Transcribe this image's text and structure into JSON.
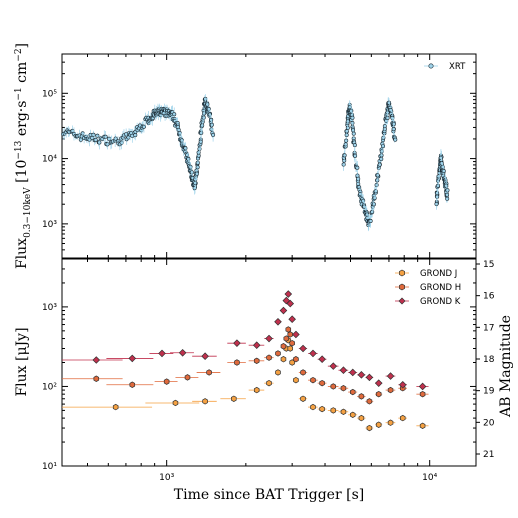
{
  "chart_data": [
    {
      "type": "scatter",
      "panel": "top",
      "xscale": "log",
      "yscale": "log",
      "xlim": [
        400,
        15000
      ],
      "ylim": [
        300,
        400000
      ],
      "ylabel": "Flux_{0.3-10keV} [10^{-13} erg·s^{-1} cm^{-2}]",
      "xlabel": "",
      "yticks": [
        {
          "v": 1000,
          "label": "10³"
        },
        {
          "v": 10000,
          "label": "10⁴"
        },
        {
          "v": 100000,
          "label": "10⁵"
        }
      ],
      "legend_placement": "top-right",
      "grid": false,
      "series": [
        {
          "name": "XRT",
          "color": "#9fd3ea",
          "segments": [
            {
              "x": [
                400,
                470,
                550,
                650,
                750,
                850,
                900,
                950,
                1000,
                1060,
                1120,
                1180,
                1240,
                1280,
                1310,
                1360,
                1400,
                1440,
                1500
              ],
              "y": [
                26000,
                22000,
                20000,
                18000,
                24000,
                40000,
                48000,
                52000,
                50000,
                45000,
                25000,
                12000,
                6000,
                3500,
                8000,
                30000,
                75000,
                55000,
                25000
              ]
            },
            {
              "x": [
                4700,
                4850,
                4950,
                5050,
                5200,
                5400,
                5700,
                5900,
                6200,
                6500,
                6800,
                7000,
                7200,
                7400
              ],
              "y": [
                8000,
                30000,
                60000,
                45000,
                12000,
                3000,
                1500,
                1000,
                3000,
                10000,
                35000,
                70000,
                40000,
                20000
              ]
            },
            {
              "x": [
                10600,
                10800,
                11000,
                11200,
                11500,
                11700
              ],
              "y": [
                2000,
                5000,
                10000,
                7000,
                4000,
                2500
              ]
            }
          ]
        }
      ]
    },
    {
      "type": "scatter",
      "panel": "bottom",
      "xscale": "log",
      "yscale": "log",
      "xlim": [
        400,
        15000
      ],
      "ylim": [
        10,
        4000
      ],
      "xlabel": "Time since BAT Trigger [s]",
      "ylabel": "Flux [μJy]",
      "y2label": "AB Magnitude",
      "xticks": [
        {
          "v": 1000,
          "label": "10³"
        },
        {
          "v": 10000,
          "label": "10⁴"
        }
      ],
      "yticks": [
        {
          "v": 10,
          "label": "10¹"
        },
        {
          "v": 100,
          "label": "10²"
        },
        {
          "v": 1000,
          "label": "10³"
        }
      ],
      "y2ticks": [
        "15",
        "16",
        "17",
        "18",
        "19",
        "20",
        "21"
      ],
      "legend_placement": "top-right",
      "grid": false,
      "series": [
        {
          "name": "GROND J",
          "color": "#f5a142",
          "x": [
            640,
            1080,
            1400,
            1800,
            2200,
            2450,
            2650,
            2780,
            2850,
            2900,
            2950,
            3000,
            3100,
            3300,
            3600,
            3900,
            4300,
            4700,
            5100,
            5500,
            5900,
            6400,
            7100,
            7900,
            9400
          ],
          "y": [
            55,
            62,
            65,
            70,
            90,
            110,
            150,
            220,
            300,
            380,
            300,
            200,
            120,
            70,
            55,
            52,
            50,
            48,
            44,
            40,
            30,
            33,
            35,
            40,
            32
          ],
          "xerr": [
            240,
            250,
            150,
            200,
            150,
            100,
            60,
            40,
            30,
            30,
            30,
            40,
            80,
            120,
            150,
            150,
            200,
            200,
            200,
            200,
            200,
            200,
            300,
            300,
            500
          ]
        },
        {
          "name": "GROND H",
          "color": "#e06a3c",
          "x": [
            540,
            740,
            1000,
            1200,
            1450,
            1850,
            2200,
            2450,
            2650,
            2780,
            2850,
            2900,
            2950,
            3000,
            3100,
            3300,
            3600,
            3900,
            4300,
            4700,
            5100,
            5500,
            5900,
            6400,
            7100,
            7900,
            9400
          ],
          "y": [
            125,
            105,
            115,
            130,
            150,
            200,
            210,
            230,
            260,
            320,
            400,
            520,
            450,
            350,
            220,
            150,
            120,
            110,
            100,
            95,
            85,
            75,
            65,
            80,
            90,
            95,
            80
          ],
          "xerr": [
            140,
            150,
            100,
            120,
            150,
            150,
            150,
            100,
            60,
            40,
            30,
            30,
            30,
            40,
            80,
            120,
            150,
            150,
            200,
            200,
            200,
            200,
            200,
            200,
            300,
            300,
            500
          ]
        },
        {
          "name": "GROND K",
          "color": "#c0304d",
          "x": [
            540,
            740,
            960,
            1150,
            1400,
            1850,
            2200,
            2450,
            2650,
            2780,
            2850,
            2900,
            2950,
            3000,
            3100,
            3300,
            3600,
            3900,
            4300,
            4700,
            5100,
            5500,
            5900,
            6400,
            7100,
            7900,
            9400
          ],
          "y": [
            215,
            225,
            260,
            265,
            240,
            350,
            330,
            400,
            650,
            900,
            1200,
            1450,
            1100,
            700,
            450,
            300,
            260,
            220,
            180,
            160,
            150,
            140,
            130,
            110,
            135,
            105,
            100
          ],
          "xerr": [
            140,
            150,
            100,
            120,
            150,
            150,
            150,
            100,
            60,
            40,
            30,
            30,
            30,
            40,
            80,
            120,
            150,
            150,
            200,
            200,
            200,
            200,
            200,
            200,
            300,
            300,
            500
          ]
        }
      ]
    }
  ]
}
